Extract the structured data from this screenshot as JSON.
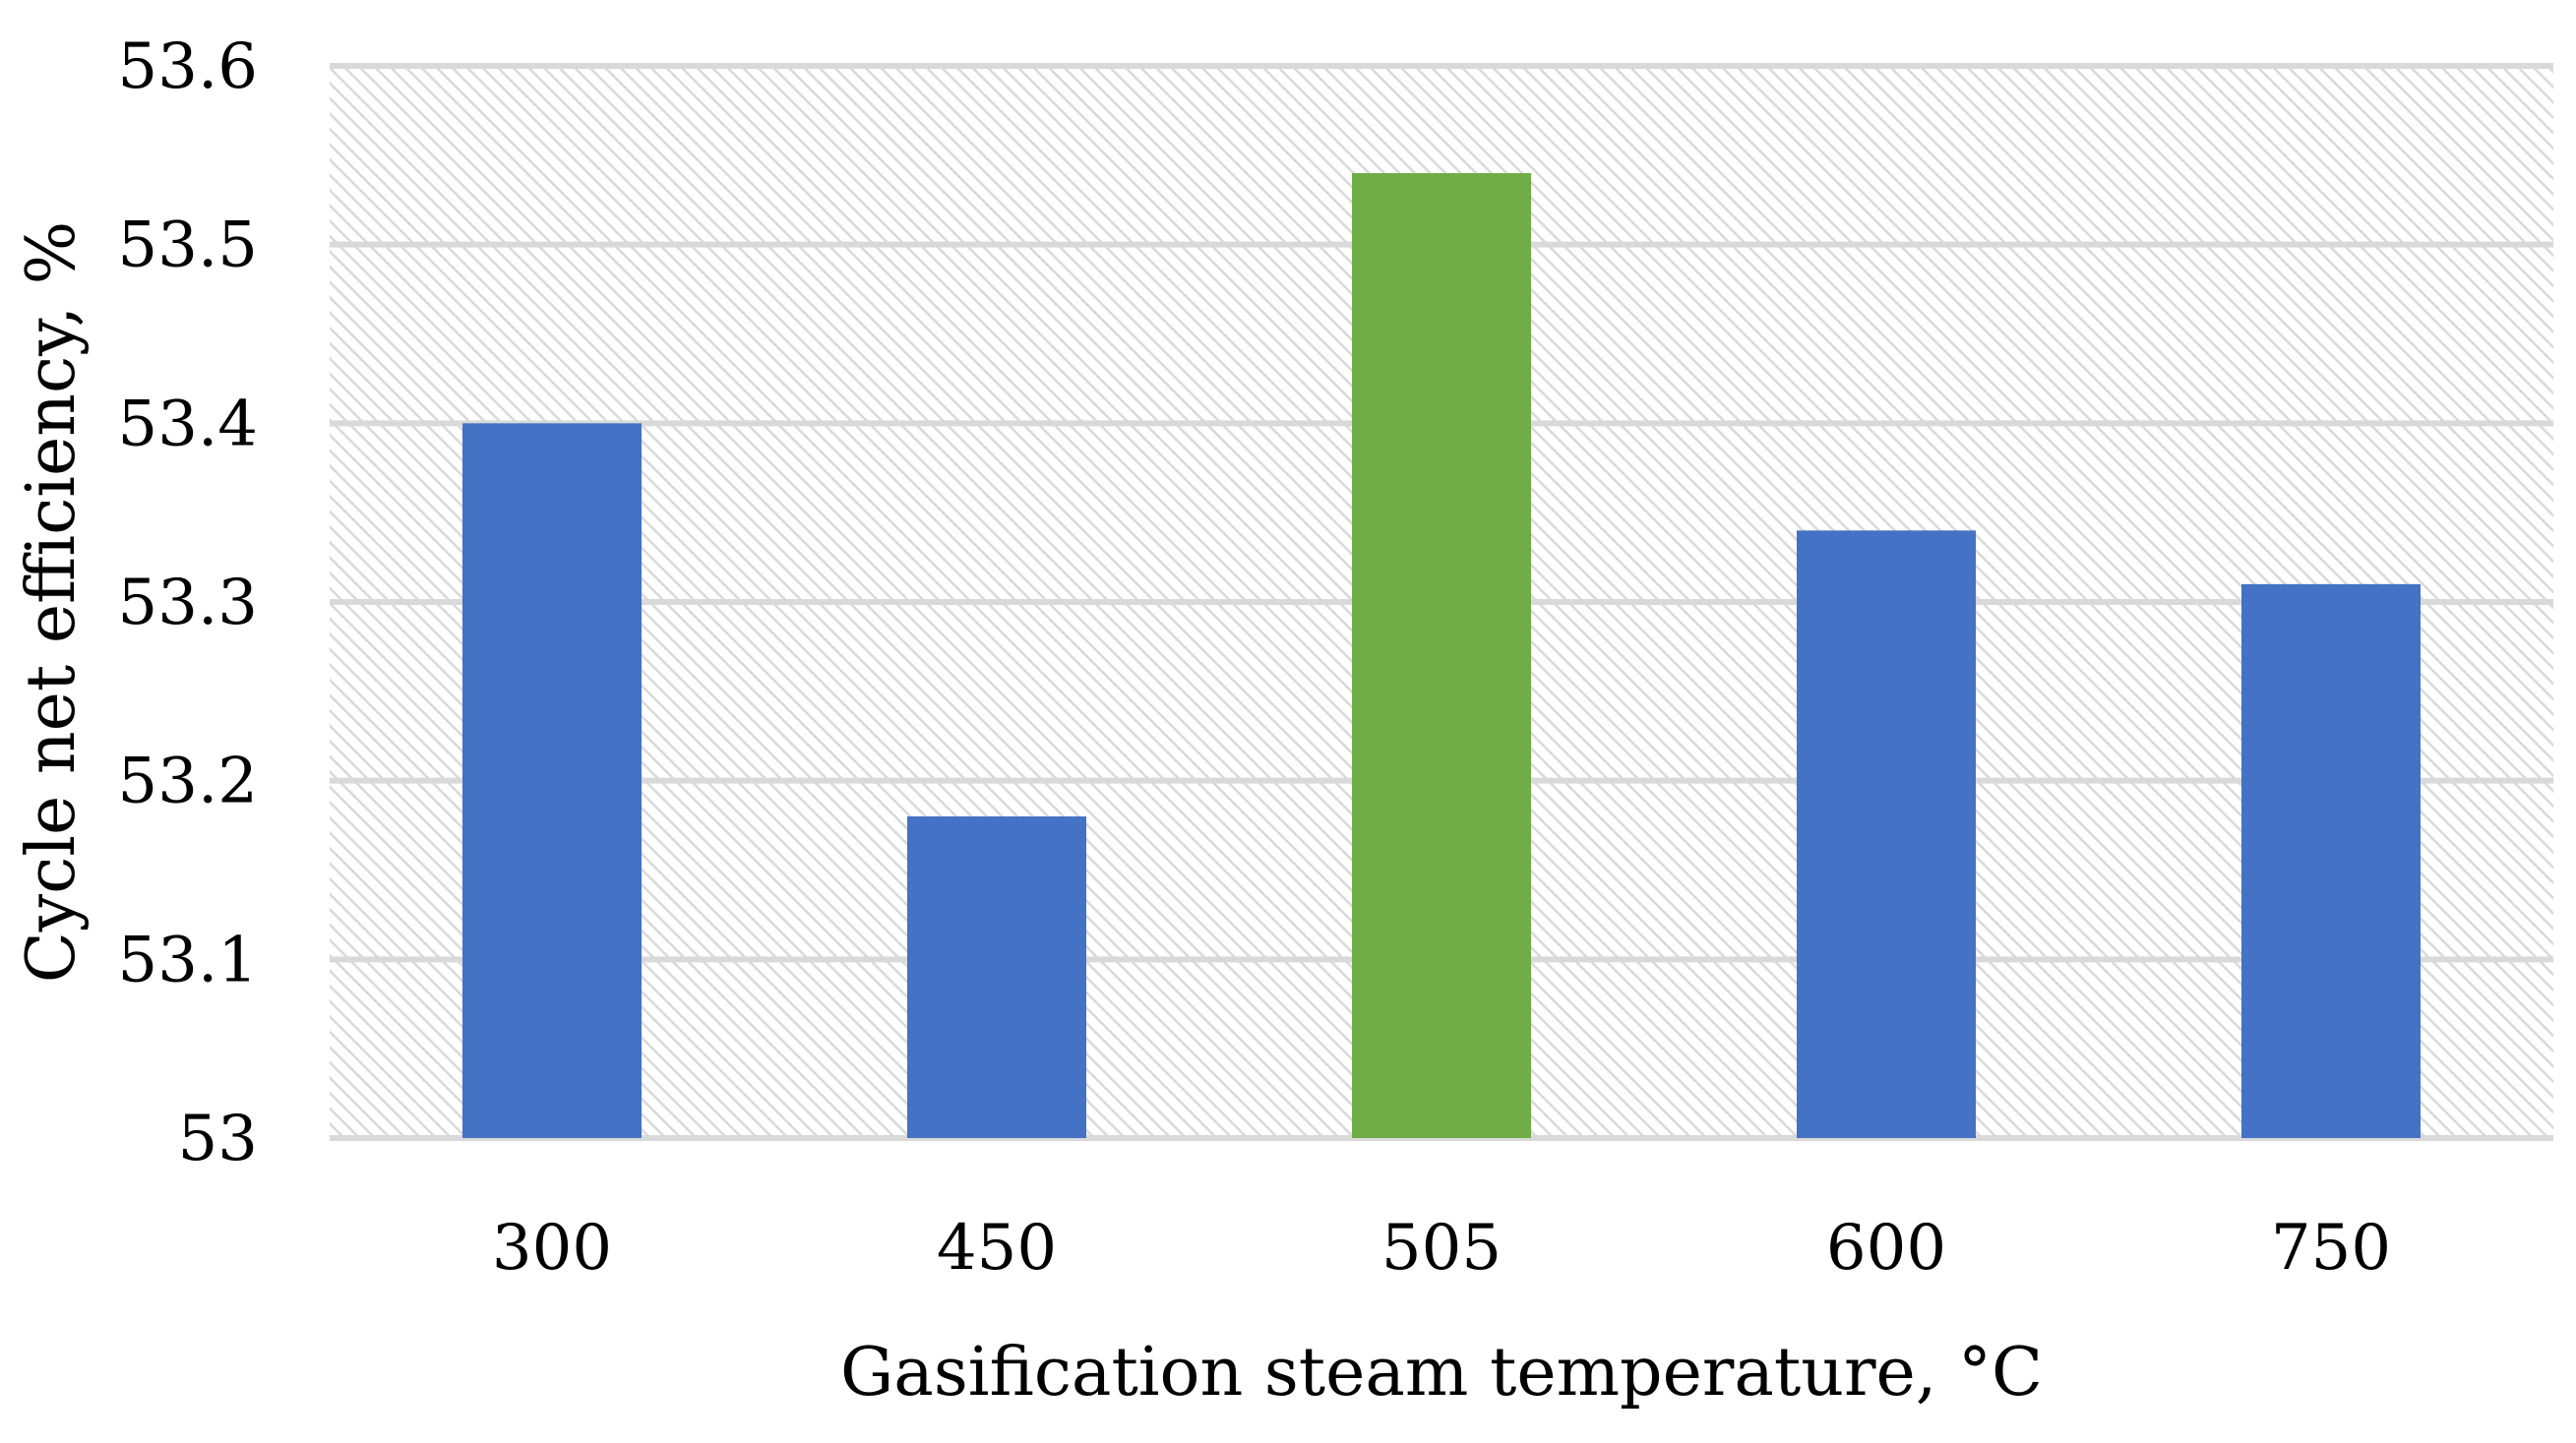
{
  "chart_data": {
    "type": "bar",
    "title": "",
    "xlabel": "Gasification steam temperature, °C",
    "ylabel": "Cycle net efficiency, %",
    "categories": [
      "300",
      "450",
      "505",
      "600",
      "750"
    ],
    "values": [
      53.4,
      53.18,
      53.54,
      53.34,
      53.31
    ],
    "ylim": [
      53,
      53.6
    ],
    "yticks": [
      53,
      53.1,
      53.2,
      53.3,
      53.4,
      53.5,
      53.6
    ],
    "ytick_labels": [
      "53",
      "53.1",
      "53.2",
      "53.3",
      "53.4",
      "53.5",
      "53.6"
    ],
    "grid": true,
    "legend": "none",
    "background_pattern": "diagonal-hatch",
    "colors": {
      "bar_default": "#4472C4",
      "bar_highlight": "#70AD47",
      "gridline": "#D9D9D9",
      "hatch": "#D9D9D9"
    },
    "highlight_category": "505"
  }
}
